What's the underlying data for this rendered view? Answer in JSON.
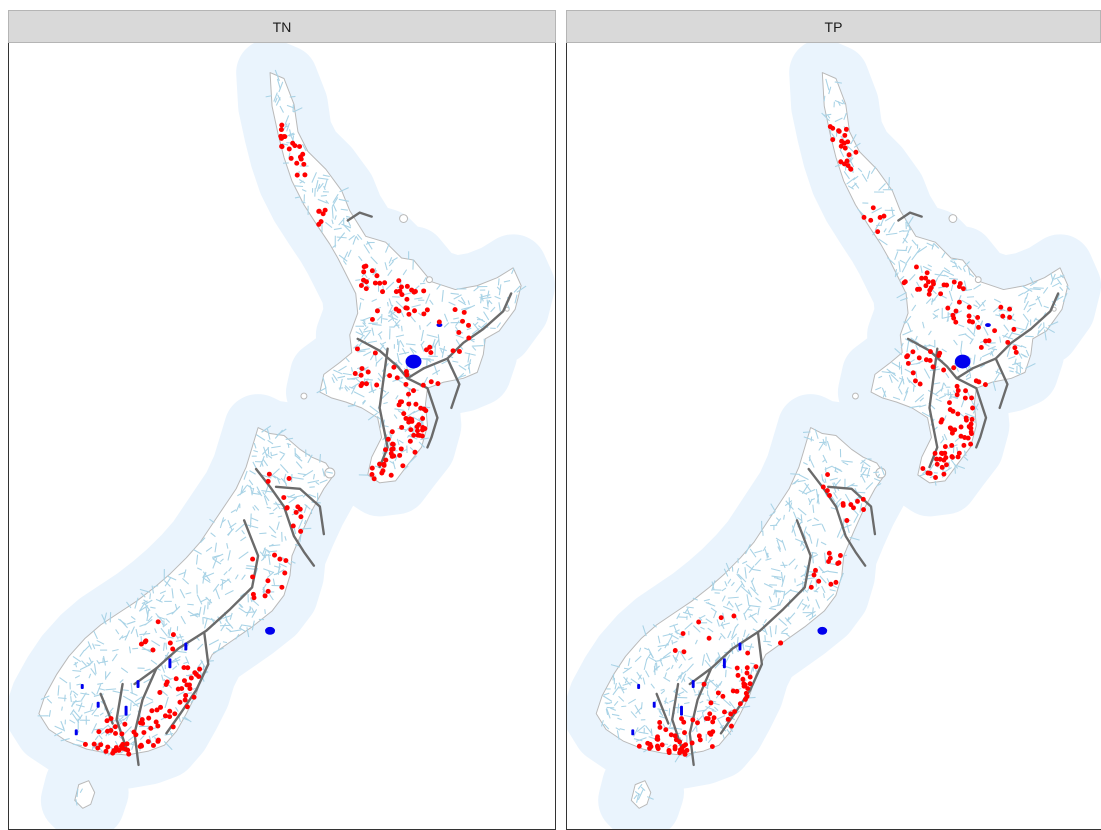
{
  "panels": [
    {
      "id": "left",
      "title": "TN"
    },
    {
      "id": "right",
      "title": "TP"
    }
  ],
  "colors": {
    "sea_buffer": "#eaf4fd",
    "land": "#ffffff",
    "coast": "#b9b9b9",
    "rivers": "#a9d3e6",
    "lakes": "#0000ee",
    "boundaries": "#6b6b6b",
    "sites": "#ff0000",
    "strip_bg": "#d9d9d9"
  },
  "icons": {
    "site_marker": "red-dot",
    "lake": "blue-fill"
  }
}
